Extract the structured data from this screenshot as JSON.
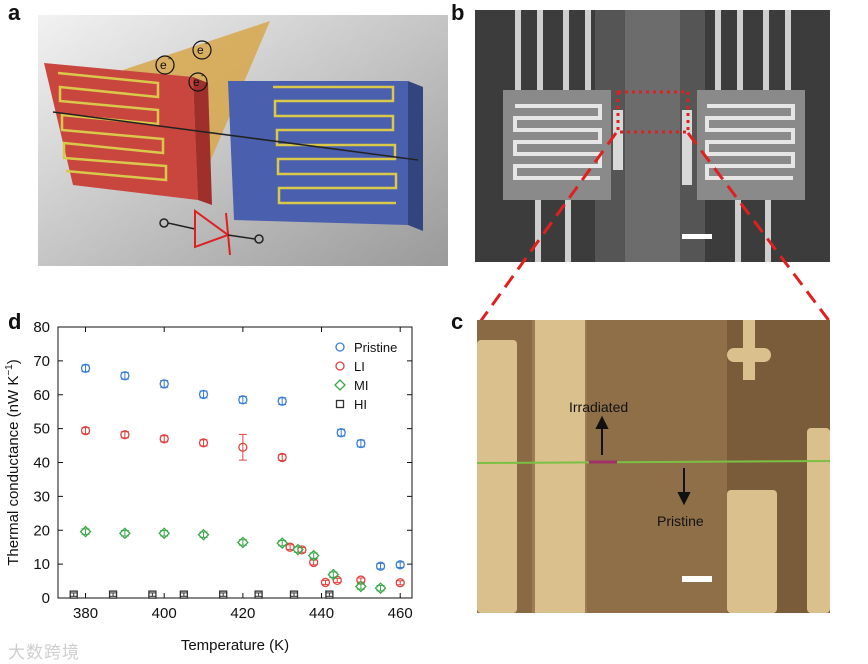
{
  "panels": {
    "a": "a",
    "b": "b",
    "c": "c",
    "d": "d"
  },
  "panel_a": {
    "electron_labels": [
      "e",
      "e",
      "e"
    ],
    "electron_superscript": "-"
  },
  "panel_c": {
    "label_irradiated": "Irradiated",
    "label_pristine": "Pristine"
  },
  "watermark": "大数跨境",
  "colors": {
    "pristine": "#3a7fd5",
    "li": "#e0423f",
    "mi": "#3aa74a",
    "hi": "#333333",
    "red_pad": "#c9463f",
    "blue_pad": "#4a5fae",
    "serpentine": "#d9c84a",
    "cone": "#d7a64a",
    "sem_gold": "#d9c08d",
    "sem_brown": "#8a6a45",
    "green_line": "#7bc043"
  },
  "chart_data": {
    "type": "scatter",
    "xlabel": "Temperature (K)",
    "ylabel": "Thermal conductance (nW K",
    "ylabel_sup": "−1",
    "ylabel_end": ")",
    "xlim": [
      373,
      463
    ],
    "ylim": [
      0,
      80
    ],
    "xticks": [
      380,
      400,
      420,
      440,
      460
    ],
    "yticks": [
      0,
      10,
      20,
      30,
      40,
      50,
      60,
      70,
      80
    ],
    "grid": false,
    "legend_position": "top-right",
    "series": [
      {
        "name": "Pristine",
        "marker": "circle",
        "color": "#3a7fd5",
        "x": [
          380,
          390,
          400,
          410,
          420,
          430,
          445,
          450,
          455,
          460
        ],
        "y": [
          67.8,
          65.6,
          63.2,
          60.1,
          58.5,
          58.1,
          48.8,
          45.6,
          9.4,
          9.8
        ],
        "err": [
          1.0,
          1.0,
          1.0,
          1.0,
          1.0,
          1.0,
          1.0,
          1.0,
          0.8,
          0.8
        ]
      },
      {
        "name": "LI",
        "marker": "circle",
        "color": "#e0423f",
        "x": [
          380,
          390,
          400,
          410,
          420,
          430,
          432,
          435,
          438,
          441,
          444,
          450,
          460
        ],
        "y": [
          49.4,
          48.2,
          47.0,
          45.8,
          44.5,
          41.5,
          15.0,
          14.2,
          10.5,
          4.6,
          5.2,
          5.3,
          4.5
        ],
        "err": [
          0.9,
          0.9,
          0.9,
          0.9,
          3.8,
          0.9,
          0.7,
          0.7,
          0.7,
          0.6,
          0.6,
          0.6,
          0.6
        ]
      },
      {
        "name": "MI",
        "marker": "diamond",
        "color": "#3aa74a",
        "x": [
          380,
          390,
          400,
          410,
          420,
          430,
          434,
          438,
          443,
          450,
          455
        ],
        "y": [
          19.6,
          19.1,
          19.1,
          18.7,
          16.4,
          16.2,
          14.3,
          12.5,
          6.9,
          3.4,
          2.9
        ],
        "err": [
          0.8,
          0.8,
          0.8,
          0.8,
          0.8,
          0.8,
          0.8,
          0.8,
          0.8,
          0.8,
          0.8
        ]
      },
      {
        "name": "HI",
        "marker": "square",
        "color": "#333333",
        "x": [
          377,
          387,
          397,
          405,
          415,
          424,
          433,
          442
        ],
        "y": [
          1.0,
          1.0,
          1.0,
          1.0,
          1.0,
          1.0,
          1.0,
          1.0
        ],
        "err": [
          0.5,
          0.5,
          0.5,
          0.5,
          0.5,
          0.5,
          0.5,
          0.5
        ]
      }
    ]
  }
}
